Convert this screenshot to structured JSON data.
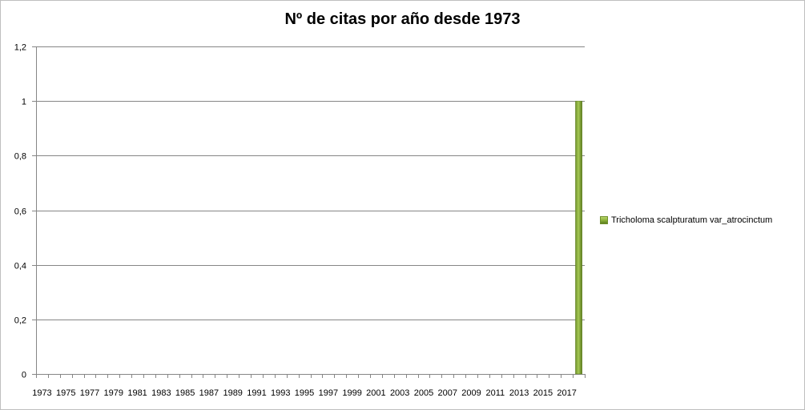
{
  "chart_data": {
    "type": "bar",
    "title": "Nº de citas por año desde 1973",
    "xlabel": "",
    "ylabel": "",
    "ylim": [
      0,
      1.2
    ],
    "y_ticks": [
      0,
      0.2,
      0.4,
      0.6,
      0.8,
      1,
      1.2
    ],
    "y_tick_labels": [
      "0",
      "0,2",
      "0,4",
      "0,6",
      "0,8",
      "1",
      "1,2"
    ],
    "categories": [
      "1973",
      "1974",
      "1975",
      "1976",
      "1977",
      "1978",
      "1979",
      "1980",
      "1981",
      "1982",
      "1983",
      "1984",
      "1985",
      "1986",
      "1987",
      "1988",
      "1989",
      "1990",
      "1991",
      "1992",
      "1993",
      "1994",
      "1995",
      "1996",
      "1997",
      "1998",
      "1999",
      "2000",
      "2001",
      "2002",
      "2003",
      "2004",
      "2005",
      "2006",
      "2007",
      "2008",
      "2009",
      "2010",
      "2011",
      "2012",
      "2013",
      "2014",
      "2015",
      "2016",
      "2017",
      "2018"
    ],
    "x_tick_labels": [
      "1973",
      "1975",
      "1977",
      "1979",
      "1981",
      "1983",
      "1985",
      "1987",
      "1989",
      "1991",
      "1993",
      "1995",
      "1997",
      "1999",
      "2001",
      "2003",
      "2005",
      "2007",
      "2009",
      "2011",
      "2013",
      "2015",
      "2017"
    ],
    "series": [
      {
        "name": "Tricholoma scalpturatum  var_atrocinctum",
        "color": "#8db33a",
        "values": [
          0,
          0,
          0,
          0,
          0,
          0,
          0,
          0,
          0,
          0,
          0,
          0,
          0,
          0,
          0,
          0,
          0,
          0,
          0,
          0,
          0,
          0,
          0,
          0,
          0,
          0,
          0,
          0,
          0,
          0,
          0,
          0,
          0,
          0,
          0,
          0,
          0,
          0,
          0,
          0,
          0,
          0,
          0,
          0,
          0,
          1
        ]
      }
    ],
    "grid": true,
    "legend_position": "right"
  }
}
